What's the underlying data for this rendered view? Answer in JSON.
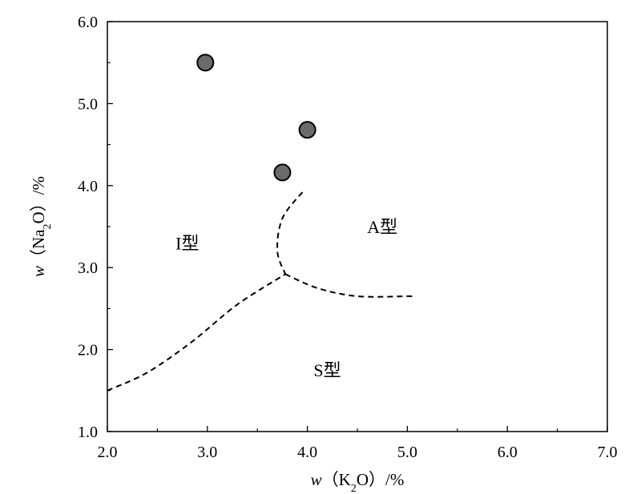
{
  "chart_data": {
    "type": "scatter",
    "title": "",
    "xlabel": {
      "var": "w",
      "open": "（K",
      "sub": "2",
      "close": "O）/%"
    },
    "ylabel": {
      "var": "w",
      "open": "（Na",
      "sub": "2",
      "close": "O）/%"
    },
    "xlim": [
      2.0,
      7.0
    ],
    "ylim": [
      1.0,
      6.0
    ],
    "x_ticks": [
      "2.0",
      "3.0",
      "4.0",
      "5.0",
      "6.0",
      "7.0"
    ],
    "y_ticks": [
      "1.0",
      "2.0",
      "3.0",
      "4.0",
      "5.0",
      "6.0"
    ],
    "grid": false,
    "points": [
      {
        "x": 2.98,
        "y": 5.5
      },
      {
        "x": 4.0,
        "y": 4.68
      },
      {
        "x": 3.75,
        "y": 4.16
      }
    ],
    "boundaries": [
      {
        "style": "dashed",
        "points": [
          [
            2.0,
            1.5
          ],
          [
            2.4,
            1.72
          ],
          [
            2.85,
            2.1
          ],
          [
            3.3,
            2.55
          ],
          [
            3.78,
            2.92
          ]
        ]
      },
      {
        "style": "dashed",
        "points": [
          [
            3.95,
            3.92
          ],
          [
            3.75,
            3.6
          ],
          [
            3.7,
            3.2
          ],
          [
            3.78,
            2.92
          ]
        ]
      },
      {
        "style": "dashed",
        "points": [
          [
            3.78,
            2.92
          ],
          [
            4.1,
            2.75
          ],
          [
            4.5,
            2.65
          ],
          [
            5.0,
            2.65
          ],
          [
            5.05,
            2.65
          ]
        ]
      }
    ],
    "regions": [
      {
        "label": "I型",
        "x": 2.8,
        "y": 3.3
      },
      {
        "label": "A型",
        "x": 4.75,
        "y": 3.5
      },
      {
        "label": "S型",
        "x": 4.2,
        "y": 1.75
      }
    ],
    "marker_color": "#6b6b6b"
  }
}
